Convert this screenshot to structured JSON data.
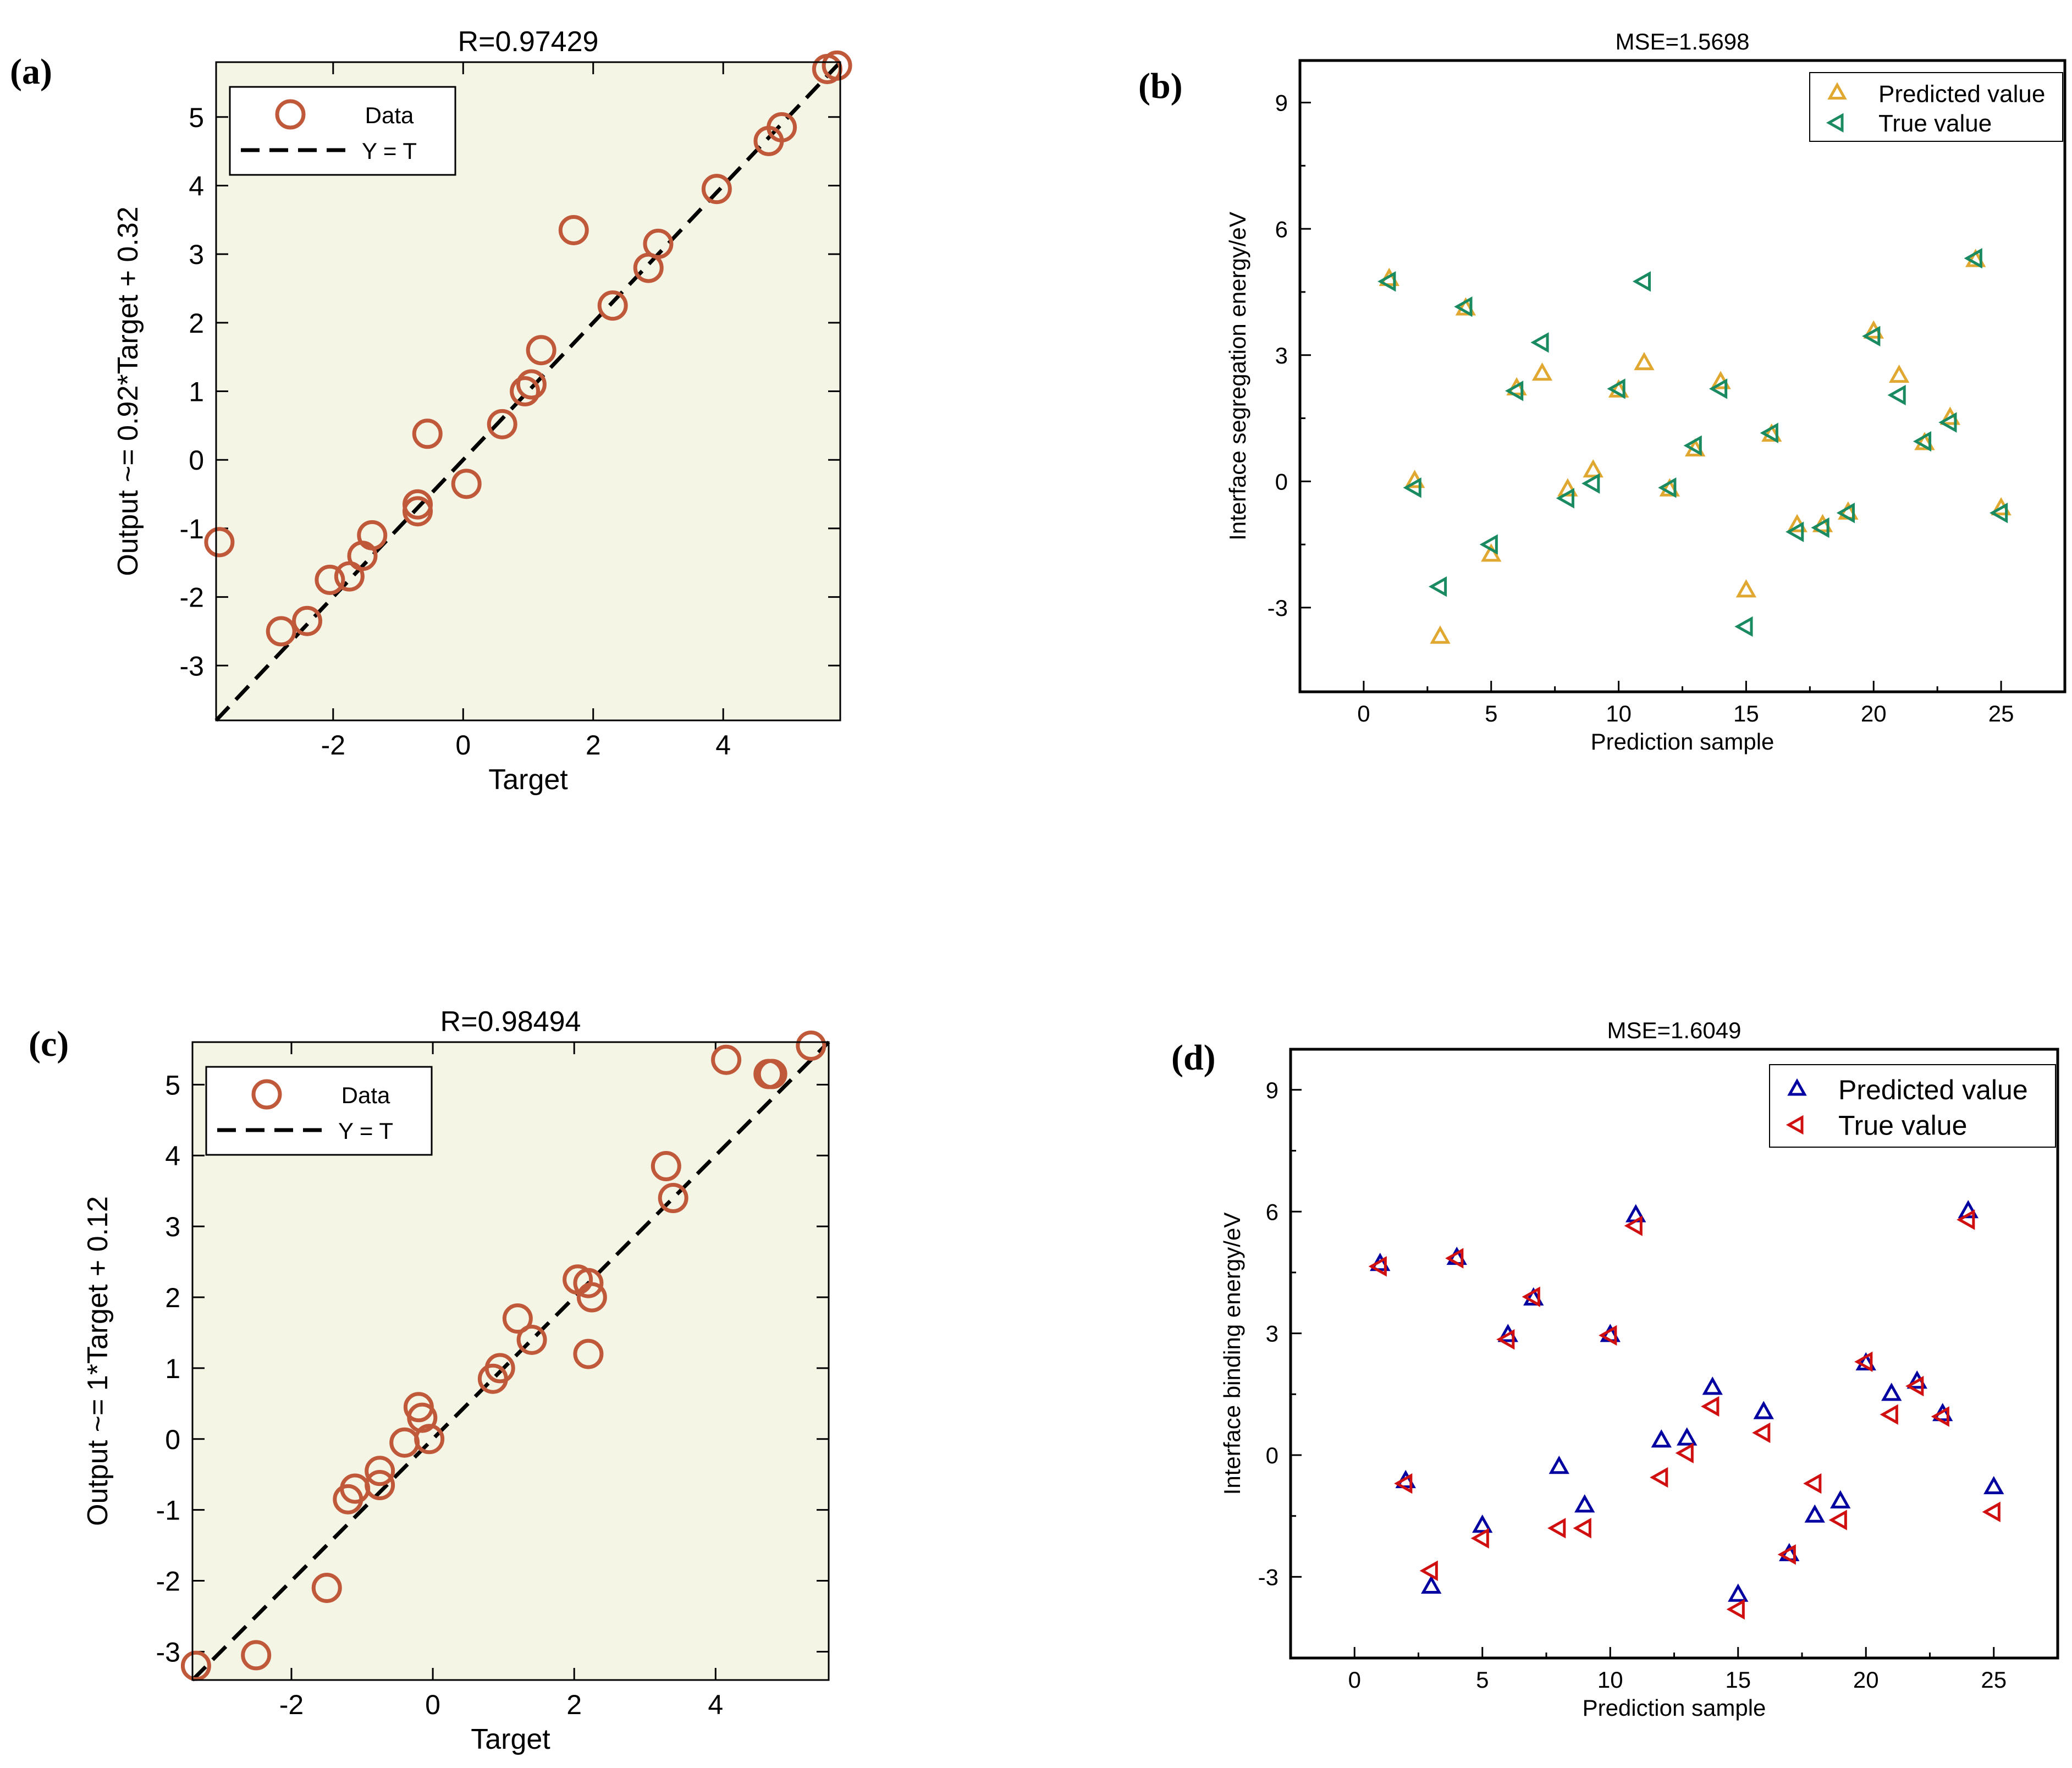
{
  "chart_data": [
    {
      "id": "a",
      "panel_label": "(a)",
      "type": "scatter",
      "title": "R=0.97429",
      "xlabel": "Target",
      "ylabel": "Output ~= 0.92*Target + 0.32",
      "xlim": [
        -3.8,
        5.8
      ],
      "ylim": [
        -3.8,
        5.8
      ],
      "xticks": [
        -2,
        0,
        2,
        4
      ],
      "yticks": [
        -3,
        -2,
        -1,
        0,
        1,
        2,
        3,
        4,
        5
      ],
      "xtick_labels": [
        "-2",
        "0",
        "2",
        "4"
      ],
      "ytick_labels": [
        "-3",
        "-2",
        "-1",
        "0",
        "1",
        "2",
        "3",
        "4",
        "5"
      ],
      "legend": [
        "Data",
        "Y = T"
      ],
      "legend_position": "top-left",
      "colors": {
        "data": "#c0583a",
        "fit": "#000000",
        "bg": "#f5f5e6"
      },
      "series": [
        {
          "name": "Data",
          "points": [
            [
              -3.75,
              -1.2
            ],
            [
              -2.8,
              -2.5
            ],
            [
              -2.4,
              -2.35
            ],
            [
              -2.05,
              -1.75
            ],
            [
              -1.75,
              -1.7
            ],
            [
              -1.55,
              -1.4
            ],
            [
              -1.4,
              -1.1
            ],
            [
              -0.7,
              -0.75
            ],
            [
              -0.7,
              -0.65
            ],
            [
              -0.55,
              0.38
            ],
            [
              0.05,
              -0.35
            ],
            [
              0.6,
              0.52
            ],
            [
              0.95,
              1.0
            ],
            [
              1.05,
              1.1
            ],
            [
              1.2,
              1.6
            ],
            [
              1.7,
              3.35
            ],
            [
              2.3,
              2.25
            ],
            [
              2.85,
              2.8
            ],
            [
              3.0,
              3.15
            ],
            [
              3.9,
              3.95
            ],
            [
              4.7,
              4.65
            ],
            [
              4.9,
              4.85
            ],
            [
              5.6,
              5.7
            ],
            [
              5.75,
              5.75
            ]
          ]
        },
        {
          "name": "Y = T",
          "line": [
            [
              -3.8,
              -3.8
            ],
            [
              5.8,
              5.8
            ]
          ]
        }
      ]
    },
    {
      "id": "b",
      "panel_label": "(b)",
      "type": "scatter",
      "title": "MSE=1.5698",
      "xlabel": "Prediction sample",
      "ylabel": "Interface segregation energy/eV",
      "xlim": [
        -2.5,
        27.5
      ],
      "ylim": [
        -5,
        10
      ],
      "xticks": [
        0,
        5,
        10,
        15,
        20,
        25
      ],
      "yticks": [
        -3,
        0,
        3,
        6,
        9
      ],
      "xtick_labels": [
        "0",
        "5",
        "10",
        "15",
        "20",
        "25"
      ],
      "ytick_labels": [
        "-3",
        "0",
        "3",
        "6",
        "9"
      ],
      "legend": [
        "Predicted value",
        "True value"
      ],
      "legend_position": "top-right",
      "colors": {
        "predicted": "#e0a830",
        "true": "#1a8a60"
      },
      "x": [
        1,
        2,
        3,
        4,
        5,
        6,
        7,
        8,
        9,
        10,
        11,
        12,
        13,
        14,
        15,
        16,
        17,
        18,
        19,
        20,
        21,
        22,
        23,
        24,
        25
      ],
      "series": [
        {
          "name": "Predicted value",
          "marker": "triangle-up",
          "values": [
            4.8,
            0.0,
            -3.7,
            4.1,
            -1.75,
            2.2,
            2.55,
            -0.2,
            0.25,
            2.15,
            2.8,
            -0.2,
            0.75,
            2.35,
            -2.6,
            1.1,
            -1.05,
            -1.05,
            -0.75,
            3.55,
            2.5,
            0.9,
            1.5,
            5.25,
            -0.65
          ]
        },
        {
          "name": "True value",
          "marker": "triangle-left",
          "values": [
            4.75,
            -0.15,
            -2.5,
            4.15,
            -1.5,
            2.15,
            3.3,
            -0.4,
            -0.05,
            2.2,
            4.75,
            -0.15,
            0.85,
            2.2,
            -3.45,
            1.15,
            -1.2,
            -1.1,
            -0.75,
            3.45,
            2.05,
            0.95,
            1.4,
            5.3,
            -0.75
          ]
        }
      ]
    },
    {
      "id": "c",
      "panel_label": "(c)",
      "type": "scatter",
      "title": "R=0.98494",
      "xlabel": "Target",
      "ylabel": "Output ~= 1*Target + 0.12",
      "xlim": [
        -3.4,
        5.6
      ],
      "ylim": [
        -3.4,
        5.6
      ],
      "xticks": [
        -2,
        0,
        2,
        4
      ],
      "yticks": [
        -3,
        -2,
        -1,
        0,
        1,
        2,
        3,
        4,
        5
      ],
      "xtick_labels": [
        "-2",
        "0",
        "2",
        "4"
      ],
      "ytick_labels": [
        "-3",
        "-2",
        "-1",
        "0",
        "1",
        "2",
        "3",
        "4",
        "5"
      ],
      "legend": [
        "Data",
        "Y = T"
      ],
      "legend_position": "top-left",
      "colors": {
        "data": "#c0583a",
        "fit": "#000000",
        "bg": "#f5f5e6"
      },
      "series": [
        {
          "name": "Data",
          "points": [
            [
              -3.35,
              -3.2
            ],
            [
              -2.5,
              -3.05
            ],
            [
              -1.5,
              -2.1
            ],
            [
              -1.2,
              -0.85
            ],
            [
              -1.1,
              -0.7
            ],
            [
              -0.75,
              -0.65
            ],
            [
              -0.75,
              -0.45
            ],
            [
              -0.4,
              -0.05
            ],
            [
              -0.2,
              0.45
            ],
            [
              -0.15,
              0.3
            ],
            [
              -0.05,
              0.0
            ],
            [
              0.85,
              0.85
            ],
            [
              0.95,
              1.0
            ],
            [
              1.2,
              1.7
            ],
            [
              1.4,
              1.4
            ],
            [
              2.05,
              2.25
            ],
            [
              2.2,
              2.2
            ],
            [
              2.25,
              2.0
            ],
            [
              2.2,
              1.2
            ],
            [
              3.3,
              3.85
            ],
            [
              3.4,
              3.4
            ],
            [
              4.15,
              5.35
            ],
            [
              4.75,
              5.15
            ],
            [
              4.8,
              5.15
            ],
            [
              5.35,
              5.55
            ]
          ]
        },
        {
          "name": "Y = T",
          "line": [
            [
              -3.4,
              -3.4
            ],
            [
              5.6,
              5.6
            ]
          ]
        }
      ]
    },
    {
      "id": "d",
      "panel_label": "(d)",
      "type": "scatter",
      "title": "MSE=1.6049",
      "xlabel": "Prediction sample",
      "ylabel": "Interface binding energy/eV",
      "xlim": [
        -2.5,
        27.5
      ],
      "ylim": [
        -5,
        10
      ],
      "xticks": [
        0,
        5,
        10,
        15,
        20,
        25
      ],
      "yticks": [
        -3,
        0,
        3,
        6,
        9
      ],
      "xtick_labels": [
        "0",
        "5",
        "10",
        "15",
        "20",
        "25"
      ],
      "ytick_labels": [
        "-3",
        "0",
        "3",
        "6",
        "9"
      ],
      "legend": [
        "Predicted value",
        "True value"
      ],
      "legend_position": "top-right",
      "colors": {
        "predicted": "#0000a0",
        "true": "#d01010"
      },
      "x": [
        1,
        2,
        3,
        4,
        5,
        6,
        7,
        8,
        9,
        10,
        11,
        12,
        13,
        14,
        15,
        16,
        17,
        18,
        19,
        20,
        21,
        22,
        23,
        24,
        25
      ],
      "series": [
        {
          "name": "Predicted value",
          "marker": "triangle-up",
          "values": [
            4.7,
            -0.65,
            -3.25,
            4.85,
            -1.75,
            2.95,
            3.85,
            -0.3,
            -1.25,
            2.95,
            5.9,
            0.35,
            0.4,
            1.65,
            -3.45,
            1.05,
            -2.45,
            -1.5,
            -1.15,
            2.25,
            1.5,
            1.8,
            1.0,
            6.0,
            -0.8
          ]
        },
        {
          "name": "True value",
          "marker": "triangle-left",
          "values": [
            4.65,
            -0.7,
            -2.85,
            4.85,
            -2.05,
            2.85,
            3.9,
            -1.8,
            -1.8,
            2.95,
            5.65,
            -0.55,
            0.05,
            1.2,
            -3.8,
            0.55,
            -2.45,
            -0.7,
            -1.6,
            2.3,
            1.0,
            1.7,
            0.95,
            5.8,
            -1.4
          ]
        }
      ]
    }
  ]
}
